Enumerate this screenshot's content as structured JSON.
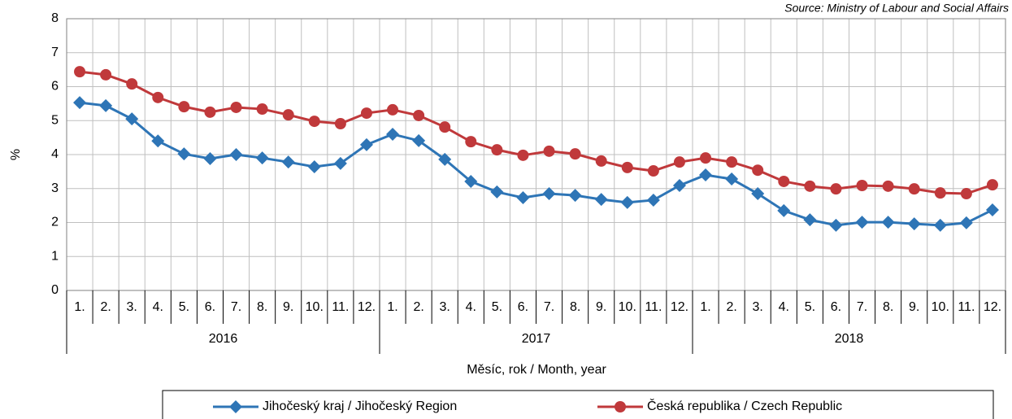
{
  "chart_data": {
    "type": "line",
    "source": "Source: Ministry of Labour and Social Affairs",
    "y_label": "%",
    "x_label": "Měsíc, rok / Month, year",
    "categories": [
      "1.",
      "2.",
      "3.",
      "4.",
      "5.",
      "6.",
      "7.",
      "8.",
      "9.",
      "10.",
      "11.",
      "12.",
      "1.",
      "2.",
      "3.",
      "4.",
      "5.",
      "6.",
      "7.",
      "8.",
      "9.",
      "10.",
      "11.",
      "12.",
      "1.",
      "2.",
      "3.",
      "4.",
      "5.",
      "6.",
      "7.",
      "8.",
      "9.",
      "10.",
      "11.",
      "12."
    ],
    "year_groups": [
      "2016",
      "2017",
      "2018"
    ],
    "ylim": [
      0,
      8
    ],
    "yticks": [
      0,
      1,
      2,
      3,
      4,
      5,
      6,
      7,
      8
    ],
    "grid": true,
    "series": [
      {
        "name": "Jihočeský kraj / Jihočeský Region",
        "color": "#2e75b6",
        "marker": "diamond",
        "values": [
          5.53,
          5.44,
          5.05,
          4.4,
          4.02,
          3.88,
          4.0,
          3.9,
          3.78,
          3.64,
          3.74,
          4.29,
          4.6,
          4.41,
          3.86,
          3.21,
          2.9,
          2.73,
          2.85,
          2.8,
          2.68,
          2.59,
          2.66,
          3.09,
          3.4,
          3.28,
          2.85,
          2.35,
          2.08,
          1.92,
          2.01,
          2.01,
          1.96,
          1.92,
          1.99,
          2.37
        ]
      },
      {
        "name": "Česká republika / Czech Republic",
        "color": "#c0393b",
        "marker": "circle",
        "values": [
          6.44,
          6.35,
          6.08,
          5.68,
          5.41,
          5.25,
          5.39,
          5.34,
          5.17,
          4.98,
          4.91,
          5.22,
          5.32,
          5.15,
          4.81,
          4.38,
          4.14,
          3.98,
          4.1,
          4.02,
          3.81,
          3.62,
          3.52,
          3.78,
          3.9,
          3.78,
          3.54,
          3.21,
          3.07,
          2.99,
          3.09,
          3.07,
          2.99,
          2.87,
          2.85,
          3.11
        ]
      }
    ]
  }
}
